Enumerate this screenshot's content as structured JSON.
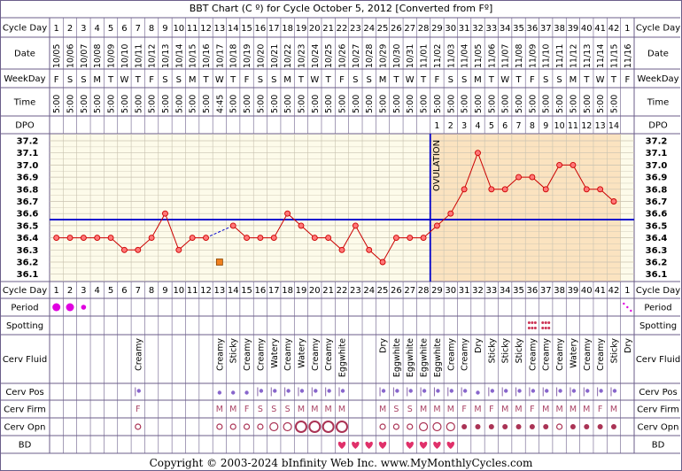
{
  "title": "BBT Chart (C º) for Cycle October 5, 2012  [Converted from Fº]",
  "copyright": "Copyright © 2003-2024 bInfinity Web Inc.    www.MyMonthlyCycles.com",
  "row_labels": {
    "cycle_day": "Cycle Day",
    "date": "Date",
    "weekday": "WeekDay",
    "time": "Time",
    "dpo": "DPO",
    "period": "Period",
    "spotting": "Spotting",
    "cerv_fluid": "Cerv Fluid",
    "cerv_pos": "Cerv Pos",
    "cerv_firm": "Cerv Firm",
    "cerv_opn": "Cerv Opn",
    "bd": "BD"
  },
  "cycle_days": [
    "1",
    "2",
    "3",
    "4",
    "5",
    "6",
    "7",
    "8",
    "9",
    "10",
    "11",
    "12",
    "13",
    "14",
    "15",
    "16",
    "17",
    "18",
    "19",
    "20",
    "21",
    "22",
    "23",
    "24",
    "25",
    "26",
    "27",
    "28",
    "29",
    "30",
    "31",
    "32",
    "33",
    "34",
    "35",
    "36",
    "37",
    "38",
    "39",
    "40",
    "41",
    "42",
    "1"
  ],
  "dates": [
    "10/05",
    "10/06",
    "10/07",
    "10/08",
    "10/09",
    "10/10",
    "10/11",
    "10/12",
    "10/13",
    "10/14",
    "10/15",
    "10/16",
    "10/17",
    "10/18",
    "10/19",
    "10/20",
    "10/21",
    "10/22",
    "10/23",
    "10/24",
    "10/25",
    "10/26",
    "10/27",
    "10/28",
    "10/29",
    "10/30",
    "10/31",
    "11/01",
    "11/02",
    "11/03",
    "11/04",
    "11/05",
    "11/06",
    "11/07",
    "11/08",
    "11/09",
    "11/10",
    "11/11",
    "11/12",
    "11/13",
    "11/14",
    "11/15",
    "11/16"
  ],
  "weekdays": [
    "F",
    "S",
    "S",
    "M",
    "T",
    "W",
    "T",
    "F",
    "S",
    "S",
    "M",
    "T",
    "W",
    "T",
    "F",
    "S",
    "S",
    "M",
    "T",
    "W",
    "T",
    "F",
    "S",
    "S",
    "M",
    "T",
    "W",
    "T",
    "F",
    "S",
    "S",
    "M",
    "T",
    "W",
    "T",
    "F",
    "S",
    "S",
    "M",
    "T",
    "W",
    "T",
    "F"
  ],
  "times": [
    "5:00",
    "5:00",
    "5:00",
    "5:00",
    "5:00",
    "5:00",
    "5:00",
    "5:00",
    "5:00",
    "5:00",
    "5:00",
    "5:00",
    "4:45",
    "5:00",
    "5:00",
    "5:00",
    "5:00",
    "5:00",
    "5:00",
    "5:00",
    "5:00",
    "5:00",
    "5:00",
    "5:00",
    "5:00",
    "5:00",
    "5:00",
    "5:00",
    "5:00",
    "5:00",
    "5:00",
    "5:00",
    "5:00",
    "5:00",
    "5:00",
    "5:00",
    "5:00",
    "5:00",
    "5:00",
    "5:00",
    "5:00",
    "5:00",
    ""
  ],
  "dpo": [
    "",
    "",
    "",
    "",
    "",
    "",
    "",
    "",
    "",
    "",
    "",
    "",
    "",
    "",
    "",
    "",
    "",
    "",
    "",
    "",
    "",
    "",
    "",
    "",
    "",
    "",
    "",
    "",
    "1",
    "2",
    "3",
    "4",
    "5",
    "6",
    "7",
    "8",
    "9",
    "10",
    "11",
    "12",
    "13",
    "14",
    ""
  ],
  "ovulation_label": "OVULATION",
  "ovulation_after_day_index": 27,
  "coverline": 36.55,
  "colors": {
    "border": "#6b5e8a",
    "grid": "#c8c2b0",
    "chart_bg": "#fdfbea",
    "luteal_bg": "#fbe3c0",
    "line": "#cc0000",
    "point_fill": "#ff7777",
    "coverline": "#0000cc",
    "period": "#e000e0",
    "spotting": "#cc3355",
    "bd": "#e0306a",
    "opn": "#aa3355"
  },
  "chart_data": {
    "type": "line",
    "title": "BBT Chart (C º) for Cycle October 5, 2012  [Converted from Fº]",
    "xlabel": "Cycle Day",
    "ylabel": "",
    "x": [
      1,
      2,
      3,
      4,
      5,
      6,
      7,
      8,
      9,
      10,
      11,
      12,
      13,
      14,
      15,
      16,
      17,
      18,
      19,
      20,
      21,
      22,
      23,
      24,
      25,
      26,
      27,
      28,
      29,
      30,
      31,
      32,
      33,
      34,
      35,
      36,
      37,
      38,
      39,
      40,
      41,
      42
    ],
    "ylim": [
      36.1,
      37.2
    ],
    "yticks": [
      "37.2",
      "37.1",
      "37.0",
      "36.9",
      "36.8",
      "36.7",
      "36.6",
      "36.5",
      "36.4",
      "36.3",
      "36.2",
      "36.1"
    ],
    "series": [
      {
        "values": [
          36.4,
          36.4,
          36.4,
          36.4,
          36.4,
          36.3,
          36.3,
          36.4,
          36.6,
          36.3,
          36.4,
          36.4,
          null,
          36.5,
          36.4,
          36.4,
          36.4,
          36.6,
          36.5,
          36.4,
          36.4,
          36.3,
          36.5,
          36.3,
          36.2,
          36.4,
          36.4,
          36.4,
          36.5,
          36.6,
          36.8,
          37.1,
          36.8,
          36.8,
          36.9,
          36.9,
          36.8,
          37.0,
          37.0,
          36.8,
          36.8,
          36.7
        ]
      }
    ],
    "discarded_points": [
      {
        "x": 13,
        "y": 36.2
      }
    ],
    "coverline": 36.55,
    "ovulation_day": 28,
    "grid": true
  },
  "period": [
    "heavy",
    "heavy",
    "light",
    "",
    "",
    "",
    "",
    "",
    "",
    "",
    "",
    "",
    "",
    "",
    "",
    "",
    "",
    "",
    "",
    "",
    "",
    "",
    "",
    "",
    "",
    "",
    "",
    "",
    "",
    "",
    "",
    "",
    "",
    "",
    "",
    "",
    "",
    "",
    "",
    "",
    "",
    "",
    "spot"
  ],
  "spotting": [
    "",
    "",
    "",
    "",
    "",
    "",
    "",
    "",
    "",
    "",
    "",
    "",
    "",
    "",
    "",
    "",
    "",
    "",
    "",
    "",
    "",
    "",
    "",
    "",
    "",
    "",
    "",
    "",
    "",
    "",
    "",
    "",
    "",
    "",
    "",
    "dots",
    "dots",
    "",
    "",
    "",
    "",
    "",
    ""
  ],
  "cerv_fluid": [
    "",
    "",
    "",
    "",
    "",
    "",
    "Creamy",
    "",
    "",
    "",
    "",
    "",
    "Creamy",
    "Sticky",
    "Creamy",
    "Creamy",
    "Watery",
    "Creamy",
    "Watery",
    "Creamy",
    "Creamy",
    "Eggwhite",
    "",
    "",
    "Dry",
    "Eggwhite",
    "Eggwhite",
    "Eggwhite",
    "Eggwhite",
    "Creamy",
    "Creamy",
    "Dry",
    "Sticky",
    "Sticky",
    "Sticky",
    "Creamy",
    "Creamy",
    "Creamy",
    "Watery",
    "Creamy",
    "Creamy",
    "Sticky",
    "Dry"
  ],
  "cerv_pos": [
    "",
    "",
    "",
    "",
    "",
    "",
    "bar-dot",
    "",
    "",
    "",
    "",
    "",
    "dot",
    "dot",
    "dot",
    "bar-dot",
    "bar-dot",
    "bar-dot",
    "bar-dot",
    "bar-dot",
    "bar-dot",
    "bar-dot",
    "",
    "",
    "bar-dot",
    "bar-dot",
    "bar-dot",
    "bar-dot",
    "bar-dot",
    "bar-dot",
    "bar-dot",
    "dot",
    "bar-dot",
    "bar-dot",
    "bar-dot",
    "bar-dot",
    "bar-dot",
    "bar-dot",
    "bar-dot",
    "bar-dot",
    "bar-dot",
    "bar-dot",
    ""
  ],
  "cerv_firm": [
    "",
    "",
    "",
    "",
    "",
    "",
    "F",
    "",
    "",
    "",
    "",
    "",
    "M",
    "M",
    "F",
    "S",
    "S",
    "S",
    "M",
    "M",
    "M",
    "M",
    "",
    "",
    "M",
    "S",
    "S",
    "M",
    "M",
    "M",
    "F",
    "M",
    "F",
    "M",
    "M",
    "F",
    "M",
    "M",
    "M",
    "M",
    "F",
    "M",
    ""
  ],
  "cerv_opn": [
    "",
    "",
    "",
    "",
    "",
    "",
    "o",
    "",
    "",
    "",
    "",
    "",
    "o",
    "o",
    "o",
    "o",
    "O",
    "O",
    "OO",
    "OO",
    "OO",
    "OO",
    "",
    "",
    "o",
    "o",
    "o",
    "O",
    "O",
    "O",
    "f",
    "f",
    "f",
    "f",
    "f",
    "f",
    "f",
    "o",
    "f",
    "f",
    "f",
    "f",
    ""
  ],
  "bd": [
    "",
    "",
    "",
    "",
    "",
    "",
    "",
    "",
    "",
    "",
    "",
    "",
    "",
    "",
    "",
    "",
    "",
    "",
    "",
    "",
    "",
    "Y",
    "Y",
    "Y",
    "Y",
    "",
    "Y",
    "Y",
    "Y",
    "Y",
    "",
    "",
    "",
    "",
    "",
    "",
    "",
    "",
    "",
    "",
    "",
    "",
    ""
  ]
}
